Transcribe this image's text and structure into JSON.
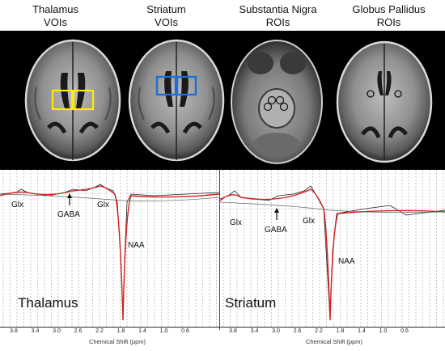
{
  "headers": [
    {
      "line1": "Thalamus",
      "line2": "VOIs"
    },
    {
      "line1": "Striatum",
      "line2": "VOIs"
    },
    {
      "line1": "Substantia Nigra",
      "line2": "ROIs"
    },
    {
      "line1": "Globus Pallidus",
      "line2": "ROIs"
    }
  ],
  "colors": {
    "thalamus_voi": "#ffeb00",
    "striatum_voi": "#1e6fd0",
    "fit_line": "#d42020",
    "spectrum": "#222222"
  },
  "spectra": [
    {
      "region_label": "Thalamus",
      "peaks": {
        "glx_left": "Glx",
        "gaba": "GABA",
        "glx_right": "Glx",
        "naa": "NAA"
      },
      "ticks": [
        "3.8",
        "3.4",
        "3.0",
        "2.6",
        "2.2",
        "1.8",
        "1.4",
        "1.0",
        "0.6"
      ],
      "xlabel": "Chemical Shift (ppm)"
    },
    {
      "region_label": "Striatum",
      "peaks": {
        "glx_left": "Glx",
        "gaba": "GABA",
        "glx_right": "Glx",
        "naa": "NAA"
      },
      "ticks": [
        "3.8",
        "3.4",
        "3.0",
        "2.6",
        "2.2",
        "1.8",
        "1.4",
        "1.0",
        "0.6"
      ],
      "xlabel": "Chemical Shift (ppm)"
    }
  ]
}
